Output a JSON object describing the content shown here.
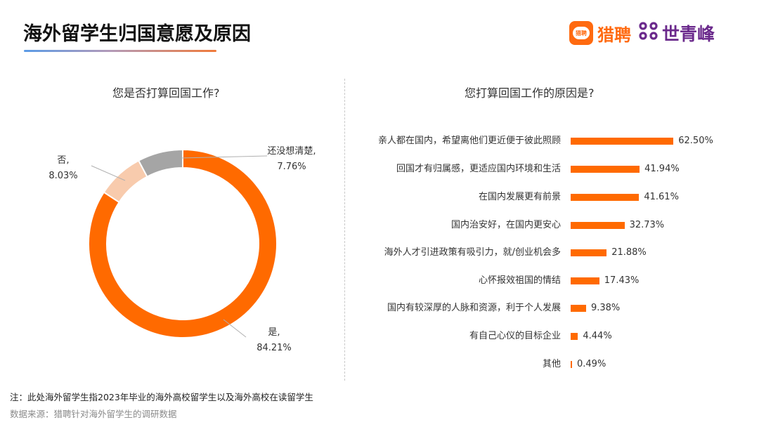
{
  "header": {
    "title": "海外留学生归国意愿及原因",
    "logo": {
      "icon_text": "猎聘",
      "brand1": "猎聘",
      "brand2_mark": "ꟸ",
      "brand2": "世青峰"
    }
  },
  "colors": {
    "orange": "#FF6A00",
    "peach": "#F8CBAD",
    "gray": "#A5A5A5",
    "logo_orange": "#FF6A10",
    "logo_purple": "#6B2A8C"
  },
  "chart_data": [
    {
      "type": "pie",
      "title": "您是否打算回国工作?",
      "donut": true,
      "categories": [
        "是",
        "否",
        "还没想清楚"
      ],
      "values": [
        84.21,
        8.03,
        7.76
      ],
      "colors": [
        "#FF6A00",
        "#F8CBAD",
        "#A5A5A5"
      ],
      "labels": [
        {
          "name": "是,",
          "value": "84.21%"
        },
        {
          "name": "否,",
          "value": "8.03%"
        },
        {
          "name": "还没想清楚,",
          "value": "7.76%"
        }
      ]
    },
    {
      "type": "bar",
      "orientation": "horizontal",
      "title": "您打算回国工作的原因是?",
      "categories": [
        "亲人都在国内，希望离他们更近便于彼此照顾",
        "回国才有归属感，更适应国内环境和生活",
        "在国内发展更有前景",
        "国内治安好，在国内更安心",
        "海外人才引进政策有吸引力，就/创业机会多",
        "心怀报效祖国的情结",
        "国内有较深厚的人脉和资源，利于个人发展",
        "有自己心仪的目标企业",
        "其他"
      ],
      "values": [
        62.5,
        41.94,
        41.61,
        32.73,
        21.88,
        17.43,
        9.38,
        4.44,
        0.49
      ],
      "value_labels": [
        "62.50%",
        "41.94%",
        "41.61%",
        "32.73%",
        "21.88%",
        "17.43%",
        "9.38%",
        "4.44%",
        "0.49%"
      ],
      "color": "#FF6A00",
      "xlabel": "",
      "ylabel": "",
      "grid": false
    }
  ],
  "footer": {
    "note": "注：此处海外留学生指2023年毕业的海外高校留学生以及海外高校在读留学生",
    "source": "数据来源：猎聘针对海外留学生的调研数据"
  }
}
